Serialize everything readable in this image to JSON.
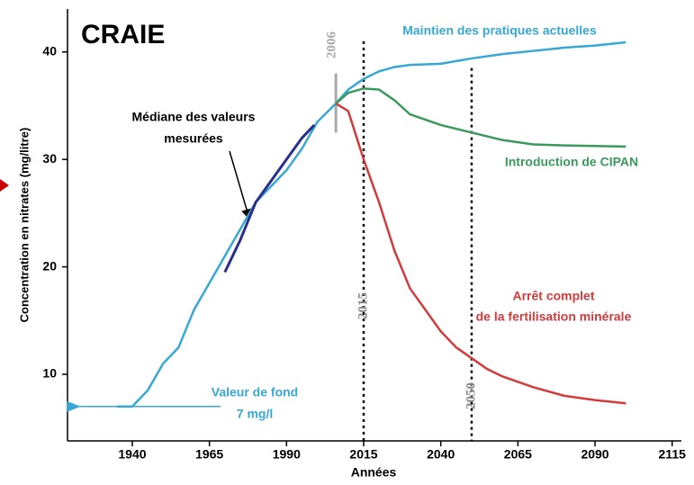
{
  "chart_data": {
    "type": "line",
    "title": "CRAIE",
    "xlabel": "Années",
    "ylabel": "Concentration en nitrates (mg/litre)",
    "xlim": [
      1919,
      2118
    ],
    "xticks": [
      1940,
      1965,
      1990,
      2015,
      2040,
      2065,
      2090,
      2115
    ],
    "ylim": [
      3.8,
      44
    ],
    "yticks": [
      10,
      20,
      30,
      40
    ],
    "series": [
      {
        "label": [
          "Maintien des pratiques actuelles"
        ],
        "color": "#37a8d4",
        "x": [
          1935,
          1940,
          1945,
          1950,
          1955,
          1960,
          1965,
          1970,
          1975,
          1980,
          1985,
          1990,
          1995,
          2000,
          2006,
          2010,
          2015,
          2020,
          2025,
          2030,
          2040,
          2050,
          2060,
          2070,
          2080,
          2090,
          2100
        ],
        "values": [
          7,
          7,
          8.5,
          11,
          12.5,
          16,
          18.5,
          21,
          23.5,
          26,
          27.5,
          29,
          31,
          33.5,
          35.2,
          36.5,
          37.5,
          38.2,
          38.6,
          38.8,
          38.9,
          39.4,
          39.8,
          40.1,
          40.4,
          40.6,
          40.9
        ]
      },
      {
        "label": [
          "Introduction de CIPAN"
        ],
        "color": "#3a9a5c",
        "x": [
          2006,
          2010,
          2015,
          2020,
          2025,
          2030,
          2040,
          2050,
          2060,
          2070,
          2080,
          2100
        ],
        "values": [
          35.2,
          36.2,
          36.6,
          36.5,
          35.5,
          34.2,
          33.2,
          32.5,
          31.8,
          31.4,
          31.3,
          31.2
        ]
      },
      {
        "label": [
          "Arrêt complet",
          "de la fertilisation minérale"
        ],
        "color": "#d23b3b",
        "x": [
          2006,
          2010,
          2015,
          2020,
          2025,
          2030,
          2035,
          2040,
          2045,
          2050,
          2055,
          2060,
          2070,
          2080,
          2090,
          2100
        ],
        "values": [
          35.2,
          34.5,
          30,
          26,
          21.5,
          18,
          16,
          14,
          12.5,
          11.5,
          10.5,
          9.8,
          8.8,
          8,
          7.6,
          7.3
        ]
      },
      {
        "label": [
          "Médiane des valeurs",
          "mesurées"
        ],
        "color": "#2b2f8c",
        "x": [
          1970,
          1975,
          1980,
          1985,
          1990,
          1995,
          1999
        ],
        "values": [
          19.5,
          22.5,
          26,
          28,
          30,
          32,
          33.2
        ]
      }
    ],
    "markers": [
      2006,
      2015,
      2050
    ],
    "background": {
      "value": 7,
      "lines": [
        "Valeur de fond",
        "7 mg/l"
      ]
    }
  }
}
